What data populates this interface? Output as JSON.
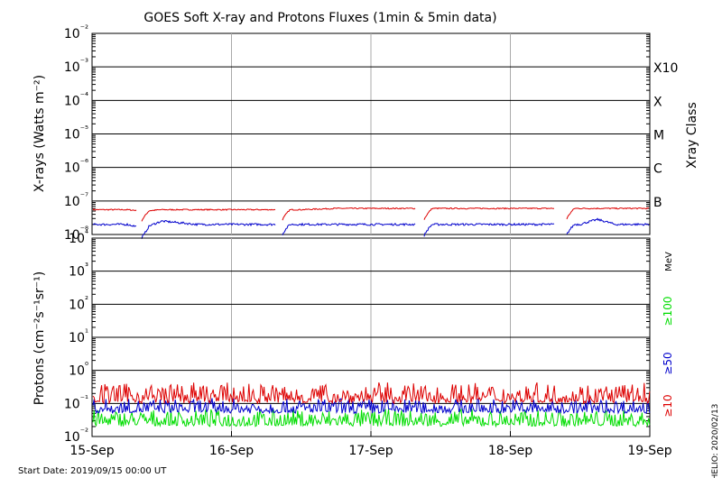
{
  "title": "GOES Soft X-ray and Protons Fluxes   (1min & 5min data)",
  "start_date": "Start Date: 2019/09/15 00:00 UT",
  "credit": "HELIO: 2020/02/13",
  "chart_data": [
    {
      "type": "line",
      "panel": "xray",
      "ylabel": "X-rays (Watts m⁻²)",
      "yscale": "log",
      "ylim": [
        1e-08,
        0.01
      ],
      "y_ticks": [
        "10⁻²",
        "10⁻³",
        "10⁻⁴",
        "10⁻⁵",
        "10⁻⁶",
        "10⁻⁷",
        "10⁻⁸"
      ],
      "right_axis": {
        "label": "Xray Class",
        "classes": [
          "X10",
          "X",
          "M",
          "C",
          "B"
        ]
      },
      "xlim": [
        "2019-09-15",
        "2019-09-19"
      ],
      "x_ticks": [
        "15-Sep",
        "16-Sep",
        "17-Sep",
        "18-Sep",
        "19-Sep"
      ],
      "grid": true,
      "series": [
        {
          "color": "#dd0000",
          "x": [
            "2019-09-15 00:00",
            "2019-09-15 06:00",
            "2019-09-15 09:00",
            "2019-09-15 12:00",
            "2019-09-15 18:00",
            "2019-09-16 00:00",
            "2019-09-16 06:00",
            "2019-09-16 12:00",
            "2019-09-16 18:00",
            "2019-09-17 00:00",
            "2019-09-17 06:00",
            "2019-09-17 12:00",
            "2019-09-17 18:00",
            "2019-09-18 00:00",
            "2019-09-18 06:00",
            "2019-09-18 12:00",
            "2019-09-18 18:00",
            "2019-09-19 00:00"
          ],
          "values": [
            5.5e-08,
            5.5e-08,
            5e-08,
            5.5e-08,
            5.5e-08,
            5.5e-08,
            5.5e-08,
            5.5e-08,
            6e-08,
            6e-08,
            6e-08,
            6e-08,
            6e-08,
            6e-08,
            6e-08,
            6e-08,
            6e-08,
            6e-08
          ]
        },
        {
          "color": "#0000cc",
          "x": [
            "2019-09-15 00:00",
            "2019-09-15 06:00",
            "2019-09-15 09:00",
            "2019-09-15 12:00",
            "2019-09-15 18:00",
            "2019-09-16 00:00",
            "2019-09-16 06:00",
            "2019-09-16 12:00",
            "2019-09-16 18:00",
            "2019-09-17 00:00",
            "2019-09-17 06:00",
            "2019-09-17 12:00",
            "2019-09-17 18:00",
            "2019-09-18 00:00",
            "2019-09-18 06:00",
            "2019-09-18 12:00",
            "2019-09-18 15:00",
            "2019-09-18 18:00",
            "2019-09-19 00:00"
          ],
          "values": [
            2e-08,
            2e-08,
            1.5e-08,
            2.5e-08,
            2e-08,
            2e-08,
            2e-08,
            2e-08,
            2e-08,
            2e-08,
            2e-08,
            2e-08,
            2e-08,
            2e-08,
            2e-08,
            2e-08,
            2.8e-08,
            2e-08,
            2e-08
          ]
        }
      ]
    },
    {
      "type": "line",
      "panel": "protons",
      "ylabel": "Protons (cm⁻²s⁻¹sr⁻¹)",
      "yscale": "log",
      "ylim": [
        0.01,
        10000
      ],
      "y_ticks": [
        "10⁴",
        "10³",
        "10²",
        "10¹",
        "10⁰",
        "10⁻¹",
        "10⁻²"
      ],
      "reference_line": 10,
      "xlim": [
        "2019-09-15",
        "2019-09-19"
      ],
      "x_ticks": [
        "15-Sep",
        "16-Sep",
        "17-Sep",
        "18-Sep",
        "19-Sep"
      ],
      "grid": true,
      "unit_label": "MeV",
      "series": [
        {
          "name": "≥10",
          "color": "#dd0000",
          "typical_value": 0.2,
          "range": [
            0.1,
            0.45
          ]
        },
        {
          "name": "≥50",
          "color": "#0000cc",
          "typical_value": 0.07,
          "range": [
            0.05,
            0.15
          ]
        },
        {
          "name": "≥100",
          "color": "#00dd00",
          "typical_value": 0.03,
          "range": [
            0.02,
            0.07
          ]
        }
      ]
    }
  ]
}
